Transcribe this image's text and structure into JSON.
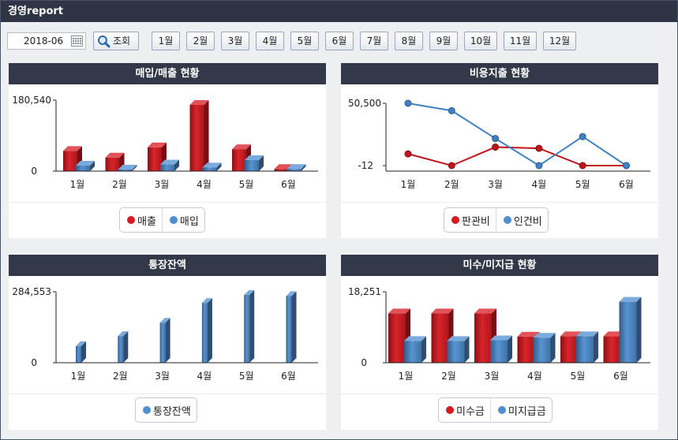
{
  "app": {
    "title": "경영report"
  },
  "toolbar": {
    "date_value": "2018-06",
    "search_label": "조회",
    "months": [
      "1월",
      "2월",
      "3월",
      "4월",
      "5월",
      "6월",
      "7월",
      "8월",
      "9월",
      "10월",
      "11월",
      "12월"
    ]
  },
  "colors": {
    "red": "#d71920",
    "blue": "#4f8ed0",
    "header": "#323848",
    "line_red": "#c0141b",
    "line_blue": "#3f82c4"
  },
  "panels": {
    "sales": {
      "title": "매입/매출 현황",
      "legend": [
        "매출",
        "매입"
      ]
    },
    "expense": {
      "title": "비용지출 현황",
      "legend": [
        "판관비",
        "인건비"
      ]
    },
    "balance": {
      "title": "통장잔액",
      "legend": [
        "통장잔액"
      ]
    },
    "receivable": {
      "title": "미수/미지급 현황",
      "legend": [
        "미수금",
        "미지급금"
      ]
    }
  },
  "chart_data": [
    {
      "type": "bar",
      "title": "매입/매출 현황",
      "categories": [
        "1월",
        "2월",
        "3월",
        "4월",
        "5월",
        "6월"
      ],
      "series": [
        {
          "name": "매출",
          "color": "#d71920",
          "values": [
            55000,
            37000,
            65000,
            180540,
            60000,
            6000
          ]
        },
        {
          "name": "매입",
          "color": "#4f8ed0",
          "values": [
            15000,
            2000,
            18000,
            10000,
            30000,
            6000
          ]
        }
      ],
      "yticks": [
        "180,540",
        "0"
      ],
      "ylim": [
        0,
        180540
      ],
      "legend_position": "bottom"
    },
    {
      "type": "line",
      "title": "비용지출 현황",
      "categories": [
        "1월",
        "2월",
        "3월",
        "4월",
        "5월",
        "6월"
      ],
      "series": [
        {
          "name": "판관비",
          "color": "#c0141b",
          "values": [
            9500,
            -12,
            15000,
            14000,
            -12,
            -12
          ]
        },
        {
          "name": "인건비",
          "color": "#3f82c4",
          "values": [
            50500,
            44500,
            22000,
            0,
            23500,
            -12
          ]
        }
      ],
      "yticks": [
        "50,500",
        "-12"
      ],
      "ylim": [
        -12,
        50500
      ],
      "legend_position": "bottom"
    },
    {
      "type": "bar",
      "title": "통장잔액",
      "categories": [
        "1월",
        "2월",
        "3월",
        "4월",
        "5월",
        "6월"
      ],
      "series": [
        {
          "name": "통장잔액",
          "color": "#4f8ed0",
          "values": [
            70000,
            112000,
            168000,
            251000,
            284553,
            280000
          ]
        }
      ],
      "yticks": [
        "284,553",
        "0"
      ],
      "ylim": [
        0,
        284553
      ],
      "legend_position": "bottom"
    },
    {
      "type": "bar",
      "title": "미수/미지급 현황",
      "categories": [
        "1월",
        "2월",
        "3월",
        "4월",
        "5월",
        "6월"
      ],
      "series": [
        {
          "name": "미수금",
          "color": "#d71920",
          "values": [
            13600,
            13600,
            13600,
            7200,
            7300,
            7300
          ]
        },
        {
          "name": "미지급금",
          "color": "#4f8ed0",
          "values": [
            6000,
            6000,
            6200,
            6900,
            7300,
            16800
          ]
        }
      ],
      "yticks": [
        "18,251",
        "0"
      ],
      "ylim": [
        0,
        18251
      ],
      "legend_position": "bottom"
    }
  ]
}
